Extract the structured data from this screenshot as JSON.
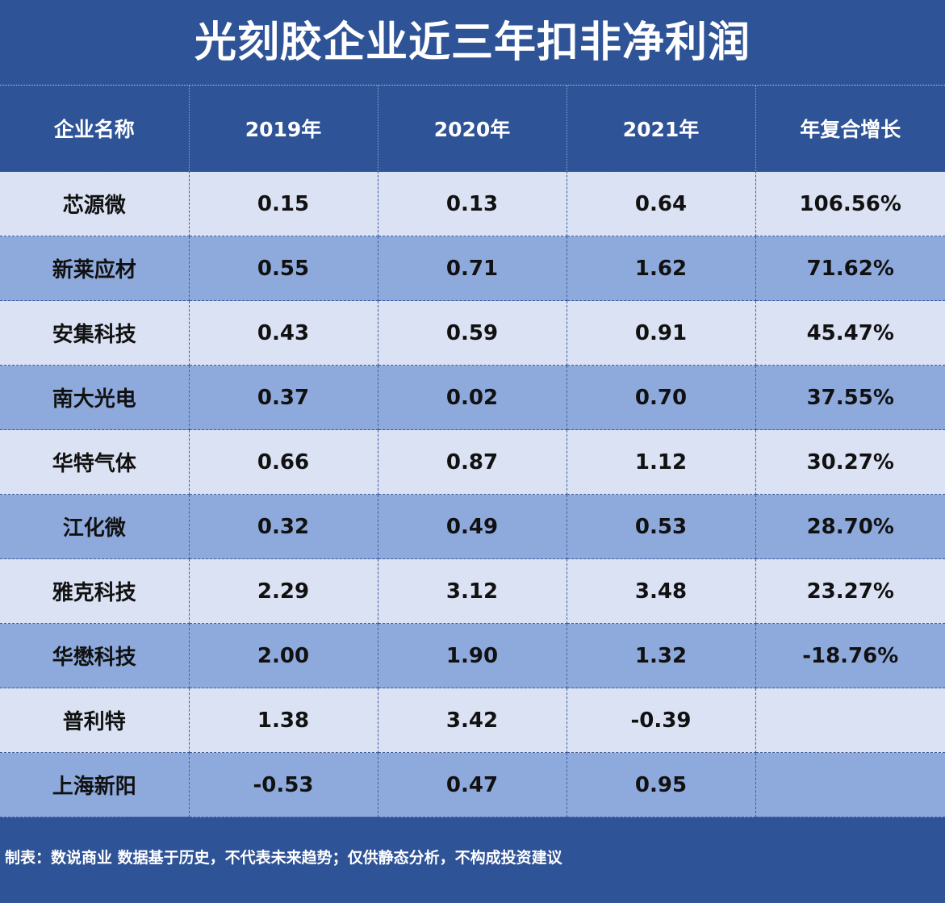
{
  "title": "光刻胶企业近三年扣非净利润",
  "table": {
    "headers": [
      "企业名称",
      "2019年",
      "2020年",
      "2021年",
      "年复合增长"
    ],
    "rows": [
      [
        "芯源微",
        "0.15",
        "0.13",
        "0.64",
        "106.56%"
      ],
      [
        "新莱应材",
        "0.55",
        "0.71",
        "1.62",
        "71.62%"
      ],
      [
        "安集科技",
        "0.43",
        "0.59",
        "0.91",
        "45.47%"
      ],
      [
        "南大光电",
        "0.37",
        "0.02",
        "0.70",
        "37.55%"
      ],
      [
        "华特气体",
        "0.66",
        "0.87",
        "1.12",
        "30.27%"
      ],
      [
        "江化微",
        "0.32",
        "0.49",
        "0.53",
        "28.70%"
      ],
      [
        "雅克科技",
        "2.29",
        "3.12",
        "3.48",
        "23.27%"
      ],
      [
        "华懋科技",
        "2.00",
        "1.90",
        "1.32",
        "-18.76%"
      ],
      [
        "普利特",
        "1.38",
        "3.42",
        "-0.39",
        ""
      ],
      [
        "上海新阳",
        "-0.53",
        "0.47",
        "0.95",
        ""
      ]
    ]
  },
  "footer": "制表：数说商业 数据基于历史，不代表未来趋势；仅供静态分析，不构成投资建议",
  "colors": {
    "background": "#2f5397",
    "row_light": "#dae2f3",
    "row_dark": "#8eaadc"
  }
}
